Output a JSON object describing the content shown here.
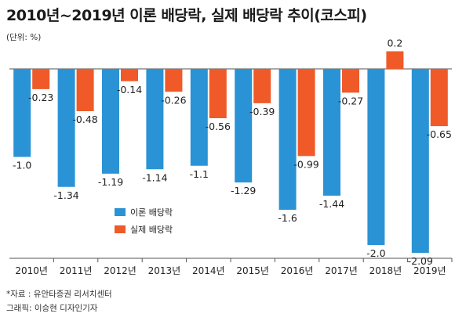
{
  "title": "2010년~2019년 이론 배당락, 실제 배당락 추이(코스피)",
  "unit": "(단위: %)",
  "source": "*자료 : 유안타증권 리서치센터",
  "graphic": "그래픽: 이승현 디자인기자",
  "chart_data": {
    "type": "bar",
    "categories": [
      "2010년",
      "2011년",
      "2012년",
      "2013년",
      "2014년",
      "2015년",
      "2016년",
      "2017년",
      "2018년",
      "2019년"
    ],
    "series": [
      {
        "name": "이론 배당락",
        "color": "#2a93d5",
        "values": [
          -1.0,
          -1.34,
          -1.19,
          -1.14,
          -1.1,
          -1.29,
          -1.6,
          -1.44,
          -2.0,
          -2.09
        ],
        "labels": [
          "-1.0",
          "-1.34",
          "-1.19",
          "-1.14",
          "-1.1",
          "-1.29",
          "-1.6",
          "-1.44",
          "-2.0",
          "-2.09"
        ]
      },
      {
        "name": "실제 배당락",
        "color": "#ef5a28",
        "values": [
          -0.23,
          -0.48,
          -0.14,
          -0.26,
          -0.56,
          -0.39,
          -0.99,
          -0.27,
          0.2,
          -0.65
        ],
        "labels": [
          "-0.23",
          "-0.48",
          "-0.14",
          "-0.26",
          "-0.56",
          "-0.39",
          "-0.99",
          "-0.27",
          "0.2",
          "-0.65"
        ]
      }
    ],
    "ylim": [
      -2.2,
      0.3
    ],
    "legend_position": "bottom-left"
  }
}
